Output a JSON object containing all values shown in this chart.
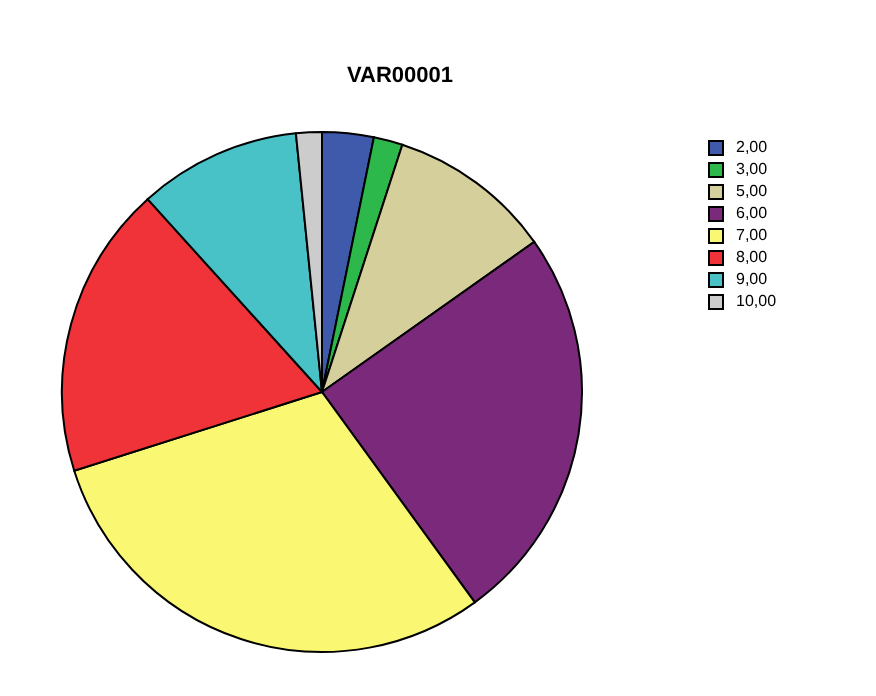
{
  "chart_data": {
    "type": "pie",
    "title": "VAR00001",
    "categories": [
      "2,00",
      "3,00",
      "5,00",
      "6,00",
      "7,00",
      "8,00",
      "9,00",
      "10,00"
    ],
    "values": [
      3.2,
      1.8,
      10.2,
      24.8,
      30.1,
      18.2,
      10.1,
      1.6
    ],
    "colors": [
      "#3f5aab",
      "#2db84b",
      "#d4cf9b",
      "#7b2a7b",
      "#faf873",
      "#f03339",
      "#48c1c7",
      "#cccccc"
    ],
    "legend": "right"
  }
}
